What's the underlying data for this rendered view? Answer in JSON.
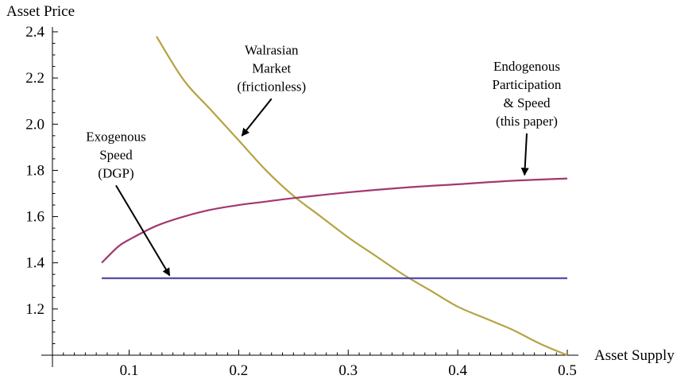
{
  "chart_data": {
    "type": "line",
    "ylabel": "Asset Price",
    "xlabel": "Asset Supply",
    "xlim": [
      0.03,
      0.5
    ],
    "ylim": [
      1.0,
      2.4
    ],
    "xticks": [
      0.1,
      0.2,
      0.3,
      0.4,
      0.5
    ],
    "xtick_labels": [
      "0.1",
      "0.2",
      "0.3",
      "0.4",
      "0.5"
    ],
    "yticks": [
      1.2,
      1.4,
      1.6,
      1.8,
      2.0,
      2.2,
      2.4
    ],
    "ytick_labels": [
      "1.2",
      "1.4",
      "1.6",
      "1.8",
      "2.0",
      "2.2",
      "2.4"
    ],
    "grid": false,
    "series": [
      {
        "color": "#b5a342",
        "x": [
          0.125,
          0.15,
          0.175,
          0.2,
          0.225,
          0.25,
          0.275,
          0.3,
          0.325,
          0.35,
          0.375,
          0.4,
          0.425,
          0.45,
          0.475,
          0.5
        ],
        "y": [
          2.38,
          2.19,
          2.06,
          1.93,
          1.8,
          1.69,
          1.6,
          1.51,
          1.43,
          1.35,
          1.28,
          1.21,
          1.16,
          1.11,
          1.05,
          1.0
        ]
      },
      {
        "color": "#a2386f",
        "x": [
          0.075,
          0.09,
          0.1,
          0.125,
          0.15,
          0.175,
          0.2,
          0.225,
          0.25,
          0.3,
          0.35,
          0.4,
          0.45,
          0.5
        ],
        "y": [
          1.4,
          1.47,
          1.5,
          1.56,
          1.6,
          1.63,
          1.65,
          1.665,
          1.68,
          1.705,
          1.725,
          1.74,
          1.755,
          1.765
        ]
      },
      {
        "color": "#4b47a3",
        "x": [
          0.075,
          0.5
        ],
        "y": [
          1.333,
          1.333
        ]
      }
    ],
    "annotations": [
      {
        "lines": [
          "Walrasian",
          "Market",
          "(frictionless)"
        ],
        "arrow_from": [
          0.23,
          2.11
        ],
        "arrow_to": [
          0.203,
          1.95
        ]
      },
      {
        "lines": [
          "Endogenous",
          "Participation",
          "& Speed",
          "(this paper)"
        ],
        "arrow_from": [
          0.463,
          1.96
        ],
        "arrow_to": [
          0.461,
          1.78
        ]
      },
      {
        "lines": [
          "Exogenous",
          "Speed",
          "(DGP)"
        ],
        "arrow_from": [
          0.088,
          1.735
        ],
        "arrow_to": [
          0.137,
          1.345
        ]
      }
    ]
  }
}
